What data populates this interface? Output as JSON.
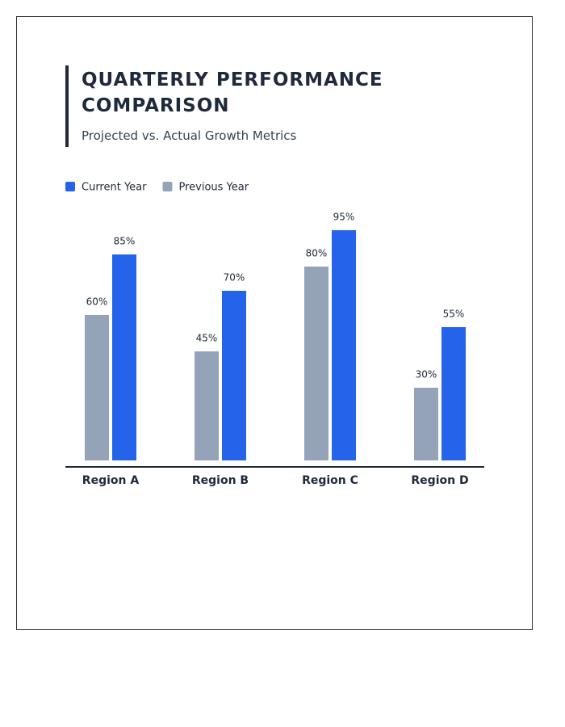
{
  "chart_data": {
    "type": "bar",
    "title": "QUARTERLY PERFORMANCE COMPARISON",
    "subtitle": "Projected vs. Actual Growth Metrics",
    "categories": [
      "Region A",
      "Region B",
      "Region C",
      "Region D"
    ],
    "series": [
      {
        "name": "Current Year",
        "color": "#2563eb",
        "values": [
          85,
          70,
          95,
          55
        ],
        "value_labels": [
          "85%",
          "70%",
          "95%",
          "55%"
        ]
      },
      {
        "name": "Previous Year",
        "color": "#94a3b8",
        "values": [
          60,
          45,
          80,
          30
        ],
        "value_labels": [
          "60%",
          "45%",
          "80%",
          "30%"
        ]
      }
    ],
    "ylim": [
      0,
      100
    ]
  }
}
